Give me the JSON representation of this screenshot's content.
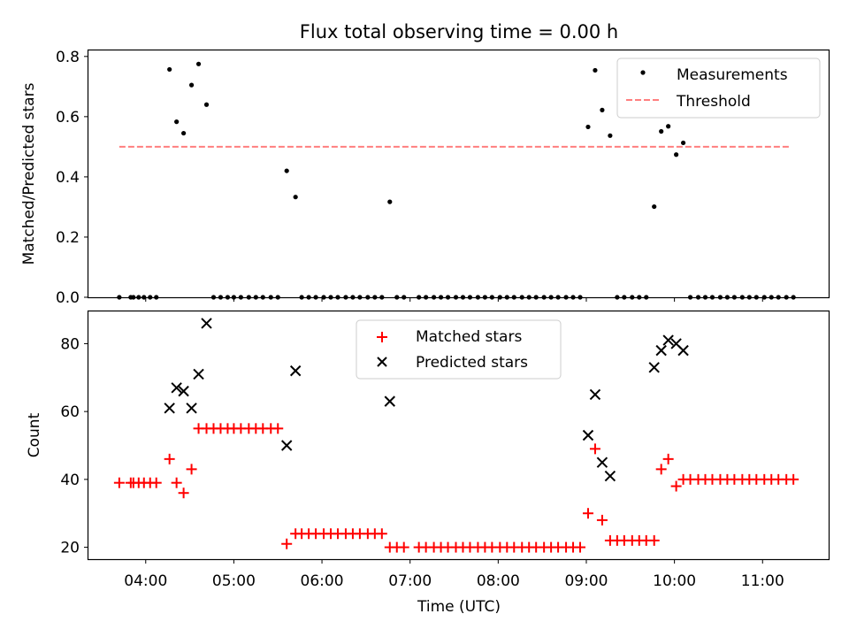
{
  "title": "Flux total observing time = 0.00 h",
  "colors": {
    "measure": "#000000",
    "threshold": "#ff7f7f",
    "matched": "#ff0000",
    "predicted": "#000000"
  },
  "chart_data": [
    {
      "type": "scatter",
      "ylabel": "Matched/Predicted stars",
      "ylim": [
        0,
        0.82
      ],
      "yticks": [
        0.0,
        0.2,
        0.4,
        0.6,
        0.8
      ],
      "ytick_labels": [
        "0.0",
        "0.2",
        "0.4",
        "0.6",
        "0.8"
      ],
      "legend": {
        "placement": "top-right",
        "entries": [
          "Measurements",
          "Threshold"
        ]
      },
      "threshold": {
        "value": 0.5,
        "x_start": 3.7,
        "x_end": 11.3
      },
      "series": [
        {
          "name": "Measurements",
          "marker": "dot",
          "x": [
            3.7,
            3.83,
            3.86,
            3.92,
            3.98,
            4.05,
            4.12,
            4.27,
            4.35,
            4.43,
            4.52,
            4.6,
            4.69,
            4.77,
            4.85,
            4.93,
            5.0,
            5.08,
            5.17,
            5.25,
            5.33,
            5.42,
            5.5,
            5.6,
            5.7,
            5.77,
            5.85,
            5.93,
            6.02,
            6.1,
            6.18,
            6.27,
            6.35,
            6.43,
            6.52,
            6.6,
            6.68,
            6.77,
            6.85,
            6.93,
            7.1,
            7.18,
            7.27,
            7.35,
            7.43,
            7.52,
            7.6,
            7.68,
            7.77,
            7.85,
            7.93,
            8.02,
            8.1,
            8.18,
            8.27,
            8.35,
            8.43,
            8.52,
            8.6,
            8.68,
            8.77,
            8.85,
            8.93,
            9.02,
            9.1,
            9.18,
            9.27,
            9.35,
            9.43,
            9.52,
            9.6,
            9.68,
            9.77,
            9.85,
            9.93,
            10.02,
            10.1,
            10.18,
            10.27,
            10.35,
            10.43,
            10.52,
            10.6,
            10.68,
            10.77,
            10.85,
            10.93,
            11.02,
            11.1,
            11.18,
            11.27,
            11.35
          ],
          "y": [
            0,
            0,
            0,
            0,
            0,
            0,
            0,
            0.757,
            0.583,
            0.545,
            0.705,
            0.775,
            0.64,
            0,
            0,
            0,
            0,
            0,
            0,
            0,
            0,
            0,
            0,
            0.42,
            0.333,
            0,
            0,
            0,
            0,
            0,
            0,
            0,
            0,
            0,
            0,
            0,
            0,
            0.317,
            0,
            0,
            0,
            0,
            0,
            0,
            0,
            0,
            0,
            0,
            0,
            0,
            0,
            0,
            0,
            0,
            0,
            0,
            0,
            0,
            0,
            0,
            0,
            0,
            0,
            0.566,
            0.754,
            0.622,
            0.537,
            0,
            0,
            0,
            0,
            0,
            0.301,
            0.551,
            0.568,
            0.474,
            0.513,
            0,
            0,
            0,
            0,
            0,
            0,
            0,
            0,
            0,
            0,
            0,
            0,
            0,
            0,
            0
          ]
        }
      ]
    },
    {
      "type": "scatter",
      "xlabel": "Time (UTC)",
      "ylabel": "Count",
      "ylim": [
        16.5,
        89.5
      ],
      "yticks": [
        20,
        40,
        60,
        80
      ],
      "ytick_labels": [
        "20",
        "40",
        "60",
        "80"
      ],
      "xlim": [
        3.35,
        11.75
      ],
      "xticks": [
        4,
        5,
        6,
        7,
        8,
        9,
        10,
        11
      ],
      "xtick_labels": [
        "04:00",
        "05:00",
        "06:00",
        "07:00",
        "08:00",
        "09:00",
        "10:00",
        "11:00"
      ],
      "legend": {
        "placement": "top-center",
        "entries": [
          "Matched stars",
          "Predicted stars"
        ]
      },
      "series": [
        {
          "name": "Matched stars",
          "marker": "plus",
          "x": [
            3.7,
            3.83,
            3.86,
            3.92,
            3.98,
            4.05,
            4.12,
            4.27,
            4.35,
            4.43,
            4.52,
            4.6,
            4.69,
            4.77,
            4.85,
            4.93,
            5.0,
            5.08,
            5.17,
            5.25,
            5.33,
            5.42,
            5.5,
            5.6,
            5.7,
            5.77,
            5.85,
            5.93,
            6.02,
            6.1,
            6.18,
            6.27,
            6.35,
            6.43,
            6.52,
            6.6,
            6.68,
            6.77,
            6.85,
            6.93,
            7.1,
            7.18,
            7.27,
            7.35,
            7.43,
            7.52,
            7.6,
            7.68,
            7.77,
            7.85,
            7.93,
            8.02,
            8.1,
            8.18,
            8.27,
            8.35,
            8.43,
            8.52,
            8.6,
            8.68,
            8.77,
            8.85,
            8.93,
            9.02,
            9.1,
            9.18,
            9.27,
            9.35,
            9.43,
            9.52,
            9.6,
            9.68,
            9.77,
            9.85,
            9.93,
            10.02,
            10.1,
            10.18,
            10.27,
            10.35,
            10.43,
            10.52,
            10.6,
            10.68,
            10.77,
            10.85,
            10.93,
            11.02,
            11.1,
            11.18,
            11.27,
            11.35
          ],
          "y": [
            39,
            39,
            39,
            39,
            39,
            39,
            39,
            46,
            39,
            36,
            43,
            55,
            55,
            55,
            55,
            55,
            55,
            55,
            55,
            55,
            55,
            55,
            55,
            21,
            24,
            24,
            24,
            24,
            24,
            24,
            24,
            24,
            24,
            24,
            24,
            24,
            24,
            20,
            20,
            20,
            20,
            20,
            20,
            20,
            20,
            20,
            20,
            20,
            20,
            20,
            20,
            20,
            20,
            20,
            20,
            20,
            20,
            20,
            20,
            20,
            20,
            20,
            20,
            30,
            49,
            28,
            22,
            22,
            22,
            22,
            22,
            22,
            22,
            43,
            46,
            38,
            40,
            40,
            40,
            40,
            40,
            40,
            40,
            40,
            40,
            40,
            40,
            40,
            40,
            40,
            40,
            40
          ]
        },
        {
          "name": "Predicted stars",
          "marker": "x",
          "x": [
            4.27,
            4.35,
            4.43,
            4.52,
            4.6,
            4.69,
            5.6,
            5.7,
            6.77,
            9.02,
            9.1,
            9.18,
            9.27,
            9.77,
            9.85,
            9.93,
            10.02,
            10.1
          ],
          "y": [
            61,
            67,
            66,
            61,
            71,
            86,
            50,
            72,
            63,
            53,
            65,
            45,
            41,
            73,
            78,
            81,
            80,
            78
          ]
        }
      ]
    }
  ]
}
